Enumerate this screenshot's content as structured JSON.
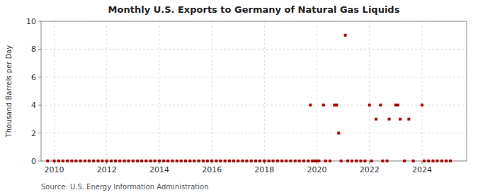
{
  "chart_data": {
    "type": "scatter",
    "title": "Monthly U.S. Exports to Germany of Natural Gas Liquids",
    "ylabel": "Thousand Barrels per Day",
    "source": "Source: U.S. Energy Information Administration",
    "color": "#aa0000",
    "marker": "square",
    "grid": true,
    "xlim": [
      2009.5,
      2025.7
    ],
    "ylim": [
      0,
      10
    ],
    "xticks": [
      2010,
      2012,
      2014,
      2016,
      2018,
      2020,
      2022,
      2024
    ],
    "yticks": [
      0,
      2,
      4,
      6,
      8,
      10
    ],
    "x": [
      2009.75,
      2010.0,
      2010.17,
      2010.33,
      2010.5,
      2010.67,
      2010.83,
      2011.0,
      2011.17,
      2011.33,
      2011.5,
      2011.67,
      2011.83,
      2012.0,
      2012.17,
      2012.33,
      2012.5,
      2012.67,
      2012.83,
      2013.0,
      2013.17,
      2013.33,
      2013.5,
      2013.67,
      2013.83,
      2014.0,
      2014.17,
      2014.33,
      2014.5,
      2014.67,
      2014.83,
      2015.0,
      2015.17,
      2015.33,
      2015.5,
      2015.67,
      2015.83,
      2016.0,
      2016.17,
      2016.33,
      2016.5,
      2016.67,
      2016.83,
      2017.0,
      2017.17,
      2017.33,
      2017.5,
      2017.67,
      2017.83,
      2018.0,
      2018.17,
      2018.33,
      2018.5,
      2018.67,
      2018.83,
      2019.0,
      2019.17,
      2019.33,
      2019.5,
      2019.67,
      2019.75,
      2019.83,
      2019.92,
      2020.0,
      2020.08,
      2020.25,
      2020.33,
      2020.5,
      2020.67,
      2020.75,
      2020.83,
      2020.92,
      2021.08,
      2021.17,
      2021.33,
      2021.5,
      2021.67,
      2021.83,
      2022.0,
      2022.08,
      2022.25,
      2022.42,
      2022.5,
      2022.67,
      2022.75,
      2023.0,
      2023.08,
      2023.17,
      2023.33,
      2023.5,
      2023.67,
      2024.0,
      2024.08,
      2024.25,
      2024.42,
      2024.58,
      2024.75,
      2024.92,
      2025.08
    ],
    "values": [
      0.0,
      0.0,
      0.0,
      0.0,
      0.0,
      0.0,
      0.0,
      0.0,
      0.0,
      0.0,
      0.0,
      0.0,
      0.0,
      0.0,
      0.0,
      0.0,
      0.0,
      0.0,
      0.0,
      0.0,
      0.0,
      0.0,
      0.0,
      0.0,
      0.0,
      0.0,
      0.0,
      0.0,
      0.0,
      0.0,
      0.0,
      0.0,
      0.0,
      0.0,
      0.0,
      0.0,
      0.0,
      0.0,
      0.0,
      0.0,
      0.0,
      0.0,
      0.0,
      0.0,
      0.0,
      0.0,
      0.0,
      0.0,
      0.0,
      0.0,
      0.0,
      0.0,
      0.0,
      0.0,
      0.0,
      0.0,
      0.0,
      0.0,
      0.0,
      0.0,
      4.0,
      0.0,
      0.0,
      0.0,
      0.0,
      4.0,
      0.0,
      0.0,
      4.0,
      4.0,
      2.0,
      0.0,
      9.0,
      0.0,
      0.0,
      0.0,
      0.0,
      0.0,
      4.0,
      0.0,
      3.0,
      4.0,
      0.0,
      0.0,
      3.0,
      4.0,
      4.0,
      3.0,
      0.0,
      3.0,
      0.0,
      4.0,
      0.0,
      0.0,
      0.0,
      0.0,
      0.0,
      0.0,
      0.0
    ]
  }
}
